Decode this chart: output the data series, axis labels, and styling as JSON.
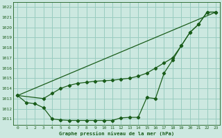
{
  "bg_color": "#cce8e0",
  "grid_color": "#99ccc0",
  "line_color": "#1a5c1a",
  "title": "Graphe pression niveau de la mer (hPa)",
  "xlim": [
    -0.5,
    23.5
  ],
  "ylim": [
    1010.4,
    1022.5
  ],
  "yticks": [
    1011,
    1012,
    1013,
    1014,
    1015,
    1016,
    1017,
    1018,
    1019,
    1020,
    1021,
    1022
  ],
  "xticks": [
    0,
    1,
    2,
    3,
    4,
    5,
    6,
    7,
    8,
    9,
    10,
    11,
    12,
    13,
    14,
    15,
    16,
    17,
    18,
    19,
    20,
    21,
    22,
    23
  ],
  "line1_x": [
    0,
    1,
    2,
    3,
    4,
    5,
    6,
    7,
    8,
    9,
    10,
    11,
    12,
    13,
    14,
    15,
    16,
    17,
    18,
    19,
    20,
    21,
    22,
    23
  ],
  "line1_y": [
    1013.3,
    1012.6,
    1012.5,
    1012.1,
    1011.0,
    1010.9,
    1010.85,
    1010.85,
    1010.85,
    1010.85,
    1010.85,
    1010.85,
    1011.1,
    1011.15,
    1011.15,
    1013.1,
    1013.0,
    1015.5,
    1016.8,
    1018.2,
    1019.5,
    1020.3,
    1021.5,
    1021.5
  ],
  "line2_x": [
    0,
    3,
    4,
    5,
    6,
    7,
    8,
    9,
    10,
    11,
    12,
    13,
    14,
    15,
    16,
    17,
    18,
    19,
    20,
    21,
    22,
    23
  ],
  "line2_y": [
    1013.3,
    1013.0,
    1013.5,
    1014.0,
    1014.3,
    1014.5,
    1014.6,
    1014.7,
    1014.75,
    1014.8,
    1014.9,
    1015.0,
    1015.2,
    1015.5,
    1016.0,
    1016.5,
    1017.0,
    1018.2,
    1019.5,
    1020.3,
    1021.5,
    1021.5
  ],
  "line3_x": [
    0,
    23
  ],
  "line3_y": [
    1013.3,
    1021.5
  ]
}
